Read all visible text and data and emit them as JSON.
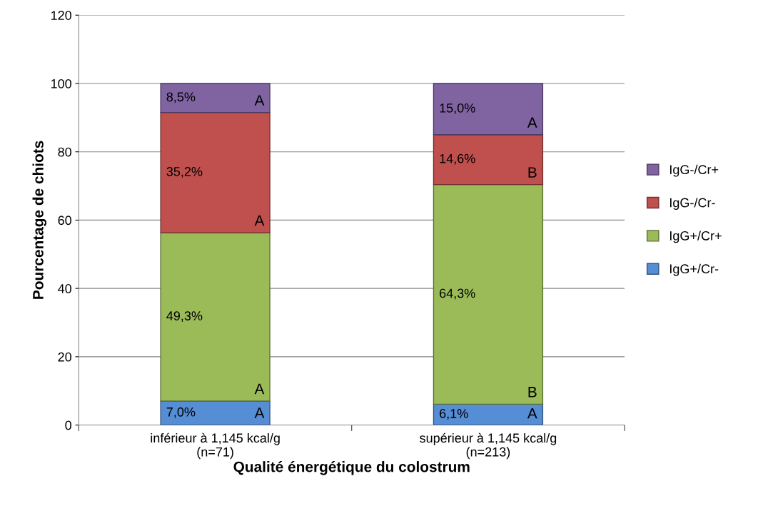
{
  "chart_data": {
    "type": "bar",
    "stacked": true,
    "xlabel": "Qualité énergétique du colostrum",
    "ylabel": "Pourcentage de chiots",
    "categories": [
      "inférieur à 1,145 kcal/g\n(n=71)",
      "supérieur à 1,145 kcal/g\n(n=213)"
    ],
    "ylim": [
      0,
      120
    ],
    "yticks": [
      0,
      20,
      40,
      60,
      80,
      100,
      120
    ],
    "grid": "y",
    "legend": "right",
    "series": [
      {
        "name": "IgG+/Cr-",
        "color": "#558ed5",
        "values": [
          7.0,
          6.1
        ],
        "value_labels": [
          "7,0%",
          "6,1%"
        ]
      },
      {
        "name": "IgG+/Cr+",
        "color": "#9bbb59",
        "values": [
          49.3,
          64.3
        ],
        "value_labels": [
          "49,3%",
          "64,3%"
        ]
      },
      {
        "name": "IgG-/Cr-",
        "color": "#c0504d",
        "values": [
          35.2,
          14.6
        ],
        "value_labels": [
          "35,2%",
          "14,6%"
        ]
      },
      {
        "name": "IgG-/Cr+",
        "color": "#8064a2",
        "values": [
          8.5,
          15.0
        ],
        "value_labels": [
          "8,5%",
          "15,0%"
        ]
      }
    ],
    "annotations": [
      "A",
      "A",
      "A",
      "A",
      "A",
      "B",
      "B",
      "A"
    ]
  }
}
